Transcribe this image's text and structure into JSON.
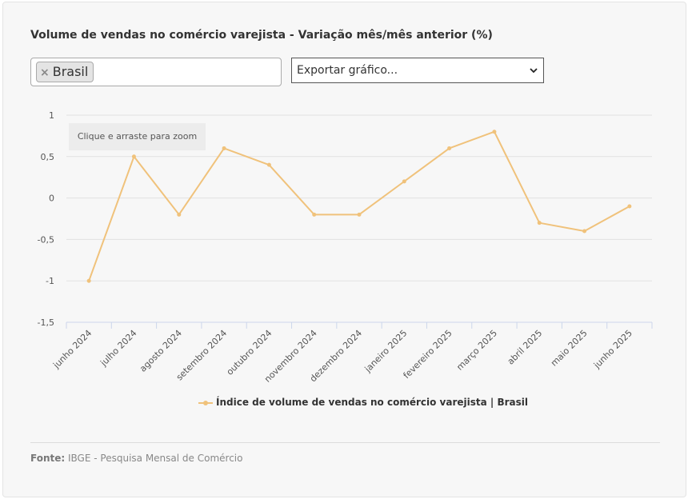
{
  "header": {
    "title": "Volume de vendas no comércio varejista - Variação mês/mês anterior (%)"
  },
  "filter": {
    "tag_remove": "×",
    "tag_label": "Brasil"
  },
  "export": {
    "label": "Exportar gráfico..."
  },
  "zoom_hint": "Clique e arraste para zoom",
  "legend": {
    "label": "Índice de volume de vendas no comércio varejista | Brasil"
  },
  "source": {
    "label": "Fonte:",
    "text": "IBGE - Pesquisa Mensal de Comércio"
  },
  "colors": {
    "series": "#f0c27b",
    "grid": "#e2e2e2",
    "axis": "#ccd6eb"
  },
  "chart_data": {
    "type": "line",
    "title": "Volume de vendas no comércio varejista - Variação mês/mês anterior (%)",
    "categories": [
      "junho 2024",
      "julho 2024",
      "agosto 2024",
      "setembro 2024",
      "outubro 2024",
      "novembro 2024",
      "dezembro 2024",
      "janeiro 2025",
      "fevereiro 2025",
      "março 2025",
      "abril 2025",
      "maio 2025",
      "junho 2025"
    ],
    "series": [
      {
        "name": "Índice de volume de vendas no comércio varejista | Brasil",
        "values": [
          -1,
          0.5,
          -0.2,
          0.6,
          0.4,
          -0.2,
          -0.2,
          0.2,
          0.6,
          0.8,
          -0.3,
          -0.4,
          -0.1
        ]
      }
    ],
    "ylim": [
      -1.5,
      1
    ],
    "yticks": [
      1,
      0.5,
      0,
      -0.5,
      -1,
      -1.5
    ],
    "ytick_labels": [
      "1",
      "0,5",
      "0",
      "-0,5",
      "-1",
      "-1,5"
    ],
    "grid": true,
    "legend_position": "bottom"
  }
}
